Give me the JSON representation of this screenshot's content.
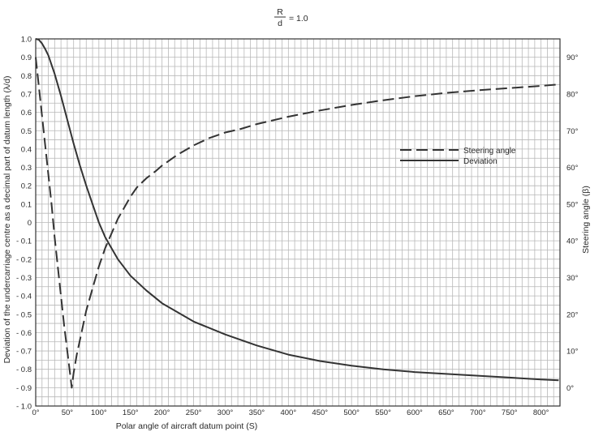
{
  "chart_data": {
    "type": "line",
    "title": {
      "numerator": "R",
      "denominator": "d",
      "rest": "= 1.0"
    },
    "xlabel": "Polar angle of aircraft datum point (S)",
    "ylabel": "Deviation of the undercarriage centre as a decimal part of datum length (λ/d)",
    "y2label": "Steering angle (β)",
    "xlim": [
      0,
      830
    ],
    "ylim": [
      -1.0,
      1.0
    ],
    "y2lim": [
      -5,
      95
    ],
    "x_ticks": [
      {
        "value": 0,
        "label": "0°"
      },
      {
        "value": 50,
        "label": "50°"
      },
      {
        "value": 100,
        "label": "100°"
      },
      {
        "value": 150,
        "label": "150°"
      },
      {
        "value": 200,
        "label": "200°"
      },
      {
        "value": 250,
        "label": "250°"
      },
      {
        "value": 300,
        "label": "300°"
      },
      {
        "value": 350,
        "label": "350°"
      },
      {
        "value": 400,
        "label": "400°"
      },
      {
        "value": 450,
        "label": "450°"
      },
      {
        "value": 500,
        "label": "500°"
      },
      {
        "value": 550,
        "label": "550°"
      },
      {
        "value": 600,
        "label": "600°"
      },
      {
        "value": 650,
        "label": "650°"
      },
      {
        "value": 700,
        "label": "700°"
      },
      {
        "value": 750,
        "label": "750°"
      },
      {
        "value": 800,
        "label": "800°"
      }
    ],
    "y_ticks": [
      {
        "value": 1.0,
        "label": "1.0"
      },
      {
        "value": 0.9,
        "label": "0.9"
      },
      {
        "value": 0.8,
        "label": "0.8"
      },
      {
        "value": 0.7,
        "label": "0.7"
      },
      {
        "value": 0.6,
        "label": "0.6"
      },
      {
        "value": 0.5,
        "label": "0.5"
      },
      {
        "value": 0.4,
        "label": "0.4"
      },
      {
        "value": 0.3,
        "label": "0.3"
      },
      {
        "value": 0.2,
        "label": "0.2"
      },
      {
        "value": 0.1,
        "label": "0.1"
      },
      {
        "value": 0,
        "label": "0"
      },
      {
        "value": -0.1,
        "label": "- 0.1"
      },
      {
        "value": -0.2,
        "label": "- 0.2"
      },
      {
        "value": -0.3,
        "label": "- 0.3"
      },
      {
        "value": -0.4,
        "label": "- 0.4"
      },
      {
        "value": -0.5,
        "label": "- 0.5"
      },
      {
        "value": -0.6,
        "label": "- 0.6"
      },
      {
        "value": -0.7,
        "label": "- 0.7"
      },
      {
        "value": -0.8,
        "label": "- 0.8"
      },
      {
        "value": -0.9,
        "label": "- 0.9"
      },
      {
        "value": -1.0,
        "label": "- 1.0"
      }
    ],
    "y2_ticks": [
      {
        "value": 0,
        "label": "0°"
      },
      {
        "value": 10,
        "label": "10°"
      },
      {
        "value": 20,
        "label": "20°"
      },
      {
        "value": 30,
        "label": "30°"
      },
      {
        "value": 40,
        "label": "40°"
      },
      {
        "value": 50,
        "label": "50°"
      },
      {
        "value": 60,
        "label": "60°"
      },
      {
        "value": 70,
        "label": "70°"
      },
      {
        "value": 80,
        "label": "80°"
      },
      {
        "value": 90,
        "label": "90°"
      }
    ],
    "grid": true,
    "legend_position": "right, upper middle",
    "series": [
      {
        "name": "Steering angle",
        "axis": "right",
        "style": "dashed",
        "x": [
          0,
          5,
          10,
          15,
          20,
          25,
          30,
          35,
          40,
          45,
          50,
          55,
          57,
          60,
          65,
          70,
          80,
          90,
          100,
          110,
          120,
          130,
          140,
          150,
          160,
          175,
          190,
          200,
          225,
          250,
          275,
          300,
          325,
          350,
          400,
          450,
          500,
          550,
          600,
          650,
          700,
          750,
          800,
          828
        ],
        "values": [
          90,
          82,
          74,
          66,
          58,
          50,
          41,
          33,
          25,
          17,
          10,
          3,
          0,
          4,
          9,
          13,
          21,
          27,
          33,
          38,
          42,
          46,
          49,
          52,
          54.5,
          57,
          59,
          60.5,
          63.5,
          66,
          68,
          69.5,
          70.5,
          71.8,
          73.8,
          75.5,
          77,
          78.3,
          79.4,
          80.3,
          81,
          81.6,
          82.2,
          82.6
        ]
      },
      {
        "name": "Deviation",
        "axis": "left",
        "style": "solid",
        "x": [
          0,
          5,
          10,
          15,
          20,
          30,
          40,
          50,
          60,
          70,
          80,
          90,
          100,
          110,
          120,
          130,
          150,
          175,
          200,
          250,
          300,
          350,
          400,
          450,
          500,
          550,
          600,
          650,
          700,
          750,
          800,
          828
        ],
        "values": [
          1.0,
          0.995,
          0.975,
          0.945,
          0.91,
          0.81,
          0.69,
          0.56,
          0.43,
          0.31,
          0.2,
          0.1,
          0.0,
          -0.08,
          -0.14,
          -0.2,
          -0.29,
          -0.37,
          -0.44,
          -0.54,
          -0.61,
          -0.67,
          -0.72,
          -0.755,
          -0.78,
          -0.8,
          -0.815,
          -0.825,
          -0.835,
          -0.845,
          -0.855,
          -0.86
        ]
      }
    ]
  }
}
